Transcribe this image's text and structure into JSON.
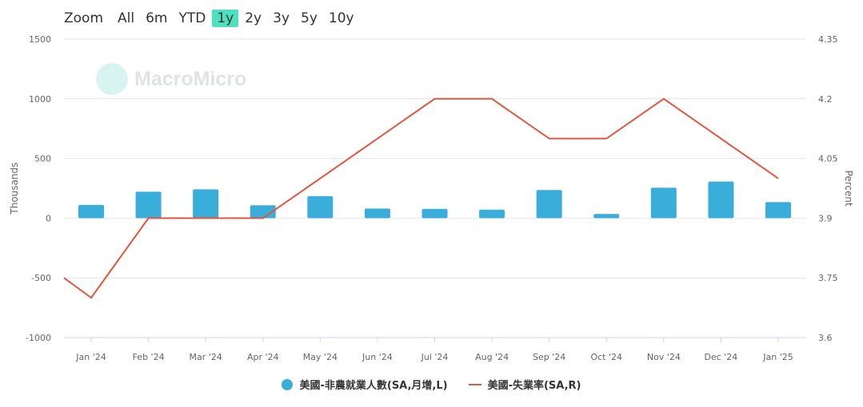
{
  "zoom": {
    "label": "Zoom",
    "buttons": [
      "All",
      "6m",
      "YTD",
      "1y",
      "2y",
      "3y",
      "5y",
      "10y"
    ],
    "active": "1y"
  },
  "watermark": {
    "text": "MacroMicro"
  },
  "colors": {
    "bar": "#3aaedb",
    "line": "#e0563f",
    "grid": "#e6e6e6",
    "axis_text": "#666666",
    "zoom_active": "#4fe0c0"
  },
  "chart_data": {
    "type": "bar+line",
    "categories": [
      "Jan '24",
      "Feb '24",
      "Mar '24",
      "Apr '24",
      "May '24",
      "Jun '24",
      "Jul '24",
      "Aug '24",
      "Sep '24",
      "Oct '24",
      "Nov '24",
      "Dec '24",
      "Jan '25"
    ],
    "ylabel_left": "Thousands",
    "ylabel_right": "Percent",
    "ylim_left": [
      -1000,
      1500
    ],
    "ylim_right": [
      3.6,
      4.35
    ],
    "yticks_left": [
      "1500",
      "1000",
      "500",
      "0",
      "-500",
      "-1000"
    ],
    "yticks_right": [
      "4.35",
      "4.2",
      "4.05",
      "3.9",
      "3.75",
      "3.6"
    ],
    "grid": true,
    "legend_position": "bottom-center",
    "series": [
      {
        "name": "美國-非農就業人數(SA,月增,L)",
        "type": "bar",
        "axis": "left",
        "values": [
          111,
          222,
          242,
          108,
          185,
          80,
          78,
          71,
          236,
          35,
          255,
          307,
          135
        ]
      },
      {
        "name": "美國-失業率(SA,R)",
        "type": "line",
        "axis": "right",
        "start_value": 3.75,
        "values": [
          3.7,
          3.9,
          3.9,
          3.9,
          4.0,
          4.1,
          4.2,
          4.2,
          4.1,
          4.1,
          4.2,
          4.1,
          4.0
        ]
      }
    ]
  }
}
